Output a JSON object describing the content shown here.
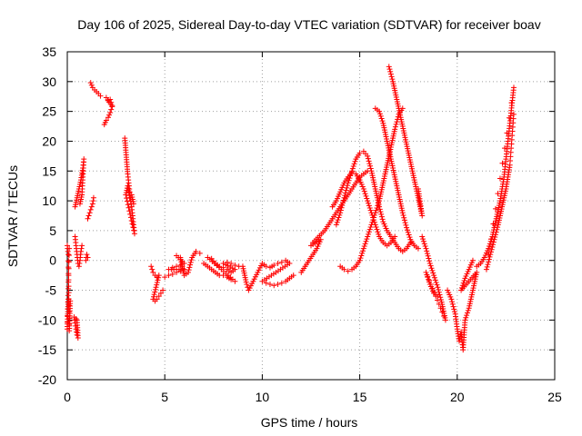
{
  "chart_data": {
    "type": "scatter",
    "title": "Day 106 of 2025, Sidereal Day-to-day VTEC variation (SDTVAR) for receiver boav",
    "xlabel": "GPS time / hours",
    "ylabel": "SDTVAR / TECUs",
    "xlim": [
      0,
      25
    ],
    "ylim": [
      -20,
      35
    ],
    "xticks": [
      0,
      5,
      10,
      15,
      20,
      25
    ],
    "yticks": [
      -20,
      -15,
      -10,
      -5,
      0,
      5,
      10,
      15,
      20,
      25,
      30,
      35
    ],
    "grid": true,
    "marker": "+",
    "color": "#ff0000",
    "series": [
      {
        "points": [
          [
            0.0,
            2.5
          ],
          [
            0.05,
            1.0
          ],
          [
            0.1,
            -11.8
          ],
          [
            0.15,
            -6.8
          ],
          [
            0.05,
            -6.5
          ],
          [
            0.0,
            -11.5
          ],
          [
            0.1,
            2.0
          ]
        ]
      },
      {
        "points": [
          [
            0.35,
            -9.5
          ],
          [
            0.4,
            -10.5
          ],
          [
            0.45,
            -11.5
          ],
          [
            0.5,
            -12.5
          ],
          [
            0.55,
            -13.0
          ],
          [
            0.5,
            -10.0
          ],
          [
            0.45,
            -9.8
          ]
        ]
      },
      {
        "points": [
          [
            0.4,
            4.0
          ],
          [
            0.45,
            2.5
          ],
          [
            0.5,
            1.0
          ],
          [
            0.55,
            -0.5
          ],
          [
            0.6,
            -1.0
          ],
          [
            0.65,
            0.0
          ],
          [
            0.7,
            1.5
          ],
          [
            0.75,
            2.5
          ]
        ]
      },
      {
        "points": [
          [
            0.4,
            9.0
          ],
          [
            0.5,
            10.5
          ],
          [
            0.6,
            12.0
          ],
          [
            0.7,
            13.5
          ],
          [
            0.8,
            15.5
          ],
          [
            0.85,
            17.0
          ],
          [
            0.75,
            11.0
          ],
          [
            0.65,
            9.5
          ]
        ]
      },
      {
        "points": [
          [
            0.95,
            0.0
          ],
          [
            1.0,
            1.0
          ],
          [
            1.05,
            0.5
          ]
        ]
      },
      {
        "points": [
          [
            1.05,
            7.0
          ],
          [
            1.1,
            7.5
          ],
          [
            1.2,
            8.5
          ],
          [
            1.3,
            9.5
          ],
          [
            1.35,
            10.5
          ]
        ]
      },
      {
        "points": [
          [
            1.2,
            29.8
          ],
          [
            1.3,
            29.0
          ],
          [
            1.4,
            28.6
          ],
          [
            1.5,
            28.3
          ],
          [
            1.6,
            28.0
          ],
          [
            1.7,
            27.6
          ]
        ]
      },
      {
        "points": [
          [
            1.9,
            22.8
          ],
          [
            2.0,
            23.5
          ],
          [
            2.1,
            24.0
          ],
          [
            2.2,
            24.8
          ],
          [
            2.3,
            25.8
          ],
          [
            2.0,
            27.3
          ],
          [
            2.1,
            26.8
          ],
          [
            2.2,
            27.0
          ],
          [
            2.3,
            26.0
          ]
        ]
      },
      {
        "points": [
          [
            2.95,
            20.5
          ],
          [
            3.0,
            18.5
          ],
          [
            3.05,
            16.5
          ],
          [
            3.1,
            14.5
          ],
          [
            3.15,
            13.0
          ],
          [
            3.2,
            11.5
          ],
          [
            3.25,
            10.0
          ],
          [
            3.3,
            9.0
          ],
          [
            3.35,
            7.5
          ],
          [
            3.4,
            6.0
          ],
          [
            3.45,
            4.5
          ],
          [
            3.0,
            11.0
          ],
          [
            3.1,
            12.5
          ],
          [
            3.2,
            10.5
          ],
          [
            3.3,
            11.0
          ],
          [
            3.4,
            9.5
          ]
        ]
      },
      {
        "points": [
          [
            4.3,
            -1.0
          ],
          [
            4.4,
            -2.0
          ],
          [
            4.5,
            -2.5
          ],
          [
            4.6,
            -2.8
          ],
          [
            4.7,
            -2.5
          ],
          [
            4.4,
            -6.5
          ],
          [
            4.5,
            -6.8
          ],
          [
            4.6,
            -6.5
          ],
          [
            4.7,
            -6.0
          ],
          [
            4.8,
            -5.5
          ],
          [
            4.9,
            -5.0
          ]
        ]
      },
      {
        "points": [
          [
            5.0,
            -2.8
          ],
          [
            5.2,
            -2.5
          ],
          [
            5.4,
            -2.3
          ],
          [
            5.6,
            -2.0
          ],
          [
            5.8,
            -1.8
          ],
          [
            6.0,
            -1.5
          ],
          [
            5.2,
            -1.5
          ],
          [
            5.4,
            -1.2
          ],
          [
            5.6,
            -1.0
          ],
          [
            5.8,
            -0.8
          ],
          [
            6.0,
            -0.5
          ],
          [
            5.6,
            0.8
          ],
          [
            5.8,
            0.5
          ],
          [
            6.0,
            -2.5
          ],
          [
            6.2,
            -2.0
          ],
          [
            6.4,
            0.5
          ],
          [
            6.6,
            1.5
          ],
          [
            6.8,
            1.2
          ]
        ]
      },
      {
        "points": [
          [
            7.0,
            -0.5
          ],
          [
            7.2,
            -1.0
          ],
          [
            7.4,
            -1.5
          ],
          [
            7.6,
            -2.0
          ],
          [
            7.8,
            -2.5
          ],
          [
            8.0,
            -2.5
          ],
          [
            8.2,
            -2.8
          ],
          [
            8.4,
            -3.2
          ],
          [
            8.6,
            -3.5
          ],
          [
            7.2,
            0.5
          ],
          [
            7.4,
            0.3
          ],
          [
            7.6,
            -0.5
          ],
          [
            7.8,
            -1.0
          ],
          [
            8.0,
            -1.2
          ],
          [
            8.2,
            -1.5
          ],
          [
            8.4,
            -2.0
          ],
          [
            8.6,
            -1.5
          ],
          [
            8.0,
            -0.5
          ],
          [
            8.2,
            -0.3
          ],
          [
            8.4,
            -0.5
          ],
          [
            8.6,
            -0.8
          ],
          [
            8.8,
            -1.0
          ]
        ]
      },
      {
        "points": [
          [
            9.0,
            -1.0
          ],
          [
            9.2,
            -4.0
          ],
          [
            9.3,
            -5.0
          ],
          [
            10.0,
            -0.5
          ],
          [
            10.2,
            -1.0
          ],
          [
            10.4,
            -1.2
          ],
          [
            10.6,
            -0.8
          ],
          [
            10.8,
            -0.5
          ],
          [
            11.0,
            -0.3
          ],
          [
            11.2,
            0.0
          ],
          [
            11.4,
            -0.5
          ],
          [
            10.0,
            -3.5
          ],
          [
            10.2,
            -3.8
          ],
          [
            10.4,
            -4.0
          ],
          [
            10.6,
            -4.2
          ],
          [
            10.8,
            -4.0
          ],
          [
            11.0,
            -3.8
          ],
          [
            11.2,
            -3.5
          ],
          [
            11.4,
            -3.0
          ],
          [
            11.6,
            -2.5
          ]
        ]
      },
      {
        "points": [
          [
            12.0,
            -2.0
          ],
          [
            12.2,
            -1.0
          ],
          [
            12.4,
            0.0
          ],
          [
            12.6,
            1.0
          ],
          [
            12.8,
            2.0
          ],
          [
            13.0,
            3.5
          ],
          [
            12.5,
            2.5
          ],
          [
            12.6,
            3.0
          ],
          [
            13.2,
            5.0
          ],
          [
            13.4,
            6.0
          ],
          [
            13.6,
            7.0
          ],
          [
            13.8,
            8.0
          ],
          [
            14.0,
            9.0
          ],
          [
            14.2,
            10.0
          ],
          [
            14.4,
            11.0
          ],
          [
            14.6,
            12.0
          ],
          [
            14.8,
            13.0
          ],
          [
            15.0,
            14.0
          ],
          [
            15.2,
            14.5
          ],
          [
            15.4,
            15.0
          ]
        ]
      },
      {
        "points": [
          [
            13.6,
            9.0
          ],
          [
            13.8,
            10.0
          ],
          [
            14.0,
            11.5
          ],
          [
            14.2,
            13.0
          ],
          [
            14.4,
            14.0
          ],
          [
            14.6,
            14.8
          ],
          [
            14.8,
            14.5
          ],
          [
            15.0,
            13.5
          ],
          [
            15.2,
            12.0
          ],
          [
            15.4,
            10.0
          ],
          [
            15.6,
            8.0
          ],
          [
            15.8,
            6.0
          ],
          [
            16.0,
            4.0
          ],
          [
            16.2,
            3.0
          ],
          [
            16.4,
            2.5
          ],
          [
            16.6,
            3.0
          ],
          [
            16.8,
            4.0
          ]
        ]
      },
      {
        "points": [
          [
            13.8,
            6.0
          ],
          [
            14.0,
            8.0
          ],
          [
            14.2,
            10.5
          ],
          [
            14.4,
            13.0
          ],
          [
            14.6,
            15.0
          ],
          [
            14.8,
            17.0
          ],
          [
            15.0,
            18.0
          ],
          [
            15.2,
            18.3
          ],
          [
            15.4,
            17.5
          ],
          [
            15.6,
            15.0
          ],
          [
            15.8,
            12.0
          ],
          [
            16.0,
            9.0
          ],
          [
            16.2,
            6.5
          ],
          [
            16.4,
            5.0
          ],
          [
            16.6,
            4.0
          ],
          [
            16.8,
            3.0
          ],
          [
            17.0,
            2.0
          ],
          [
            17.2,
            1.5
          ],
          [
            17.4,
            2.0
          ],
          [
            17.6,
            3.0
          ]
        ]
      },
      {
        "points": [
          [
            14.0,
            -1.0
          ],
          [
            14.2,
            -1.5
          ],
          [
            14.4,
            -1.8
          ],
          [
            14.6,
            -1.5
          ],
          [
            14.8,
            -1.0
          ],
          [
            15.0,
            0.0
          ],
          [
            15.2,
            2.0
          ],
          [
            15.4,
            4.0
          ],
          [
            15.6,
            6.0
          ],
          [
            15.8,
            8.0
          ],
          [
            16.0,
            10.0
          ],
          [
            16.2,
            13.0
          ],
          [
            16.4,
            16.0
          ],
          [
            16.6,
            19.0
          ],
          [
            16.8,
            22.0
          ],
          [
            17.0,
            24.5
          ],
          [
            17.2,
            25.5
          ]
        ]
      },
      {
        "points": [
          [
            15.8,
            25.5
          ],
          [
            16.0,
            25.0
          ],
          [
            16.2,
            23.0
          ],
          [
            16.4,
            20.0
          ],
          [
            16.6,
            17.0
          ],
          [
            16.8,
            14.0
          ],
          [
            17.0,
            11.0
          ],
          [
            17.2,
            8.0
          ],
          [
            17.4,
            5.5
          ],
          [
            17.6,
            3.5
          ],
          [
            17.8,
            2.5
          ],
          [
            18.0,
            2.0
          ]
        ]
      },
      {
        "points": [
          [
            16.5,
            32.5
          ],
          [
            16.7,
            30.0
          ],
          [
            16.9,
            27.0
          ],
          [
            17.1,
            24.0
          ],
          [
            17.3,
            21.0
          ],
          [
            17.5,
            18.0
          ],
          [
            17.7,
            15.0
          ],
          [
            17.9,
            12.0
          ],
          [
            18.1,
            9.0
          ],
          [
            18.2,
            7.5
          ],
          [
            18.0,
            12.0
          ]
        ]
      },
      {
        "points": [
          [
            18.2,
            4.0
          ],
          [
            18.4,
            2.0
          ],
          [
            18.6,
            -0.5
          ],
          [
            18.8,
            -2.5
          ],
          [
            19.0,
            -4.5
          ],
          [
            19.2,
            -7.0
          ],
          [
            19.4,
            -10.0
          ],
          [
            18.4,
            -2.0
          ],
          [
            18.6,
            -4.0
          ],
          [
            18.8,
            -5.5
          ],
          [
            19.0,
            -6.0
          ]
        ]
      },
      {
        "points": [
          [
            19.5,
            -5.0
          ],
          [
            19.7,
            -6.5
          ],
          [
            19.9,
            -9.0
          ],
          [
            20.0,
            -11.5
          ],
          [
            20.1,
            -13.5
          ],
          [
            20.2,
            -12.0
          ],
          [
            20.3,
            -15.0
          ],
          [
            20.4,
            -10.0
          ],
          [
            20.6,
            -8.0
          ],
          [
            20.8,
            -5.0
          ],
          [
            21.0,
            -2.0
          ],
          [
            20.2,
            -5.0
          ],
          [
            20.4,
            -3.0
          ],
          [
            20.6,
            -1.5
          ],
          [
            20.8,
            0.0
          ]
        ]
      },
      {
        "points": [
          [
            21.0,
            -1.0
          ],
          [
            21.2,
            -0.5
          ],
          [
            21.4,
            0.5
          ],
          [
            21.6,
            2.0
          ],
          [
            21.8,
            4.0
          ],
          [
            22.0,
            7.0
          ],
          [
            22.2,
            10.0
          ],
          [
            22.4,
            14.0
          ],
          [
            22.5,
            17.0
          ],
          [
            22.6,
            20.0
          ],
          [
            22.7,
            23.0
          ],
          [
            22.8,
            26.0
          ],
          [
            22.9,
            29.0
          ],
          [
            21.5,
            -1.5
          ],
          [
            21.7,
            1.0
          ],
          [
            21.9,
            3.5
          ],
          [
            22.1,
            6.0
          ],
          [
            22.3,
            9.0
          ],
          [
            22.5,
            12.0
          ],
          [
            22.7,
            16.0
          ],
          [
            22.9,
            24.5
          ]
        ]
      }
    ]
  }
}
